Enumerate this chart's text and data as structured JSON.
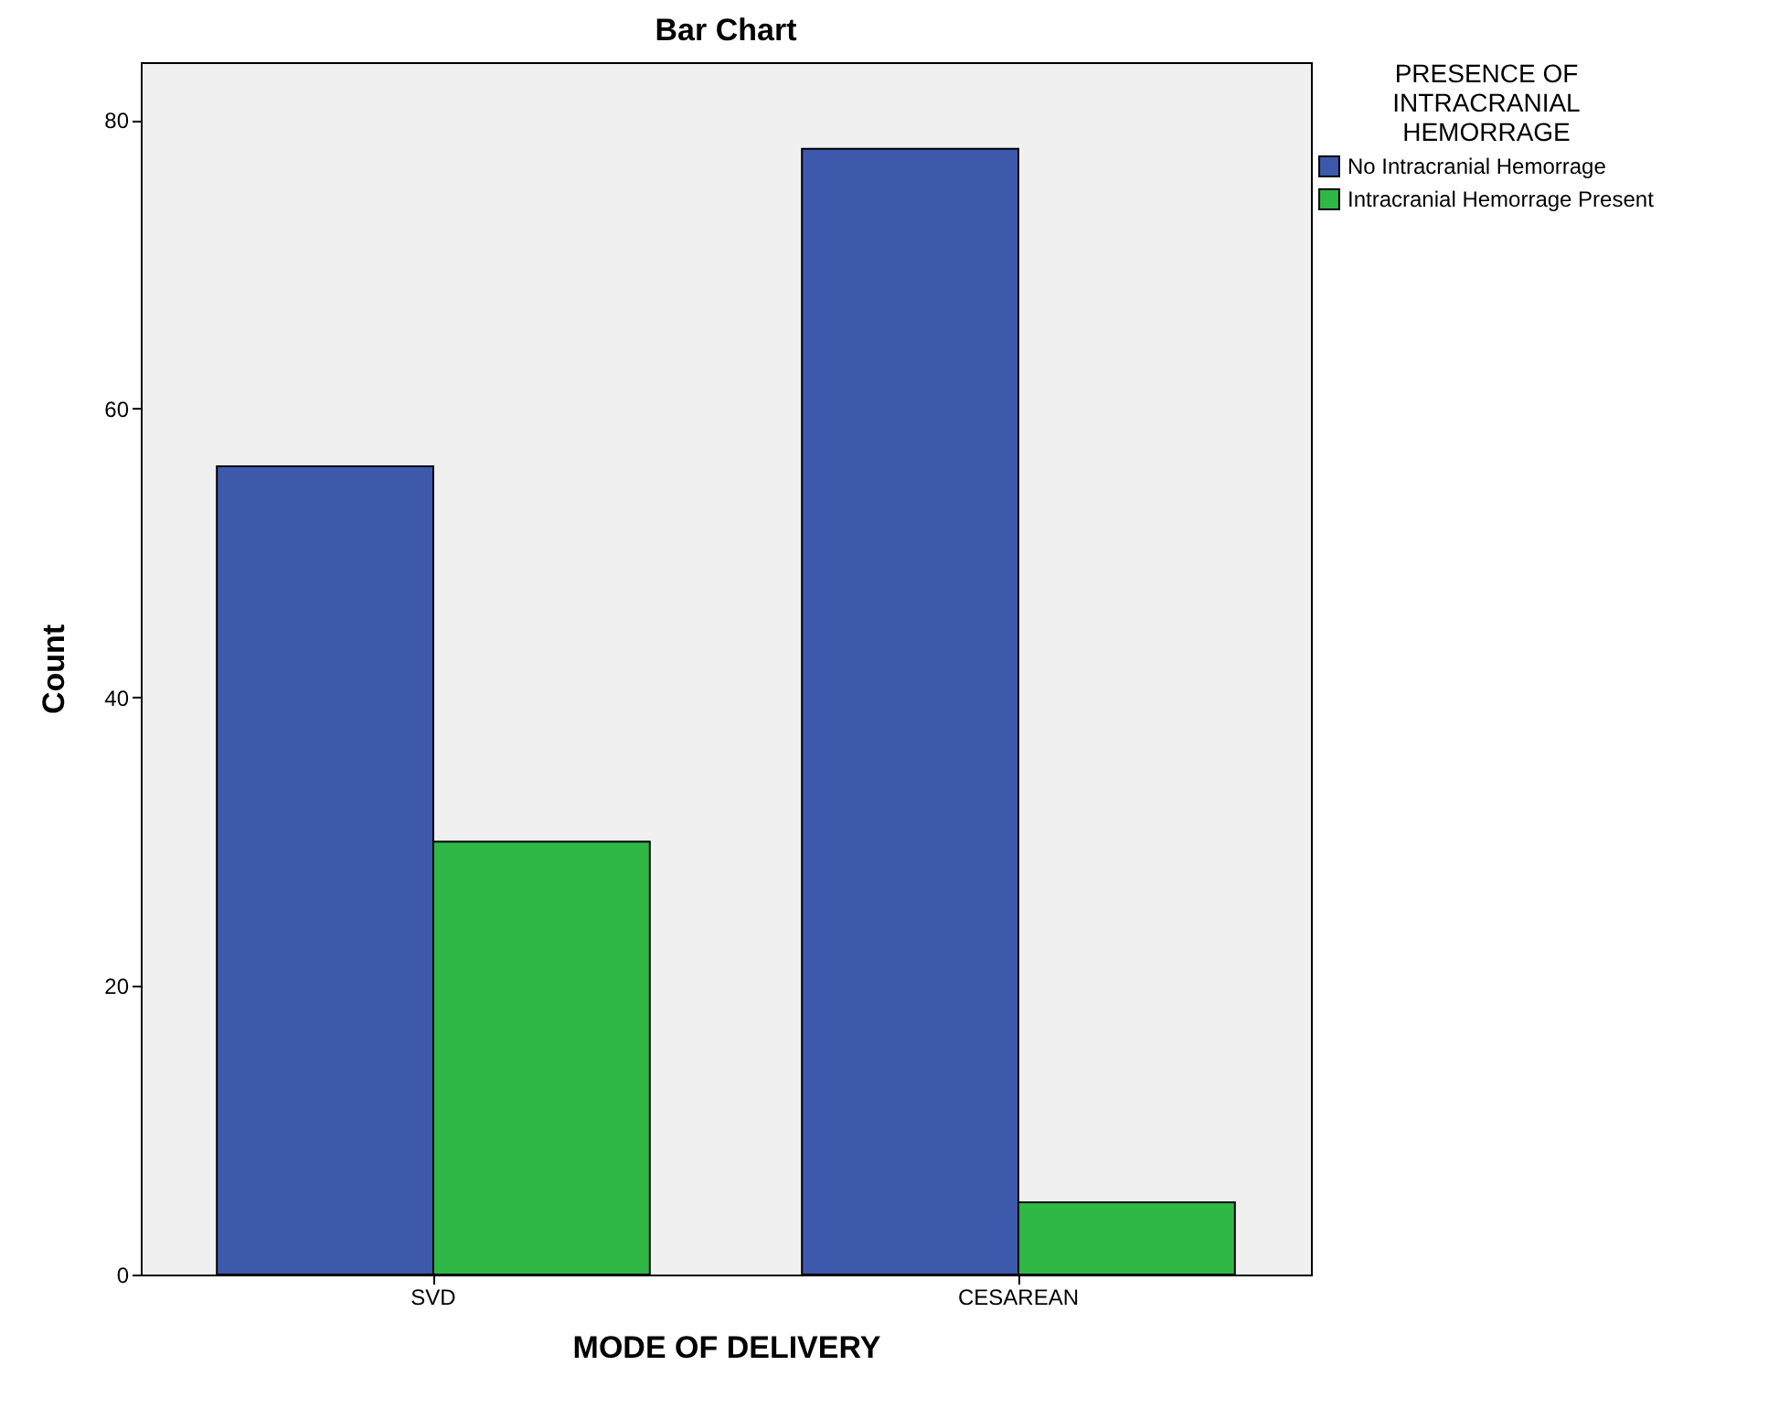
{
  "chart_data": {
    "type": "bar",
    "title": "Bar Chart",
    "xlabel": "MODE OF DELIVERY",
    "ylabel": "Count",
    "legend_title": "PRESENCE OF INTRACRANIAL HEMORRAGE",
    "categories": [
      "SVD",
      "CESAREAN"
    ],
    "series": [
      {
        "name": "No Intracranial Hemorrage",
        "color": "#3e58ac",
        "values": [
          56,
          78
        ]
      },
      {
        "name": "Intracranial Hemorrage Present",
        "color": "#2fb846",
        "values": [
          30,
          5
        ]
      }
    ],
    "ylim": [
      0,
      84
    ],
    "yticks": [
      0,
      20,
      40,
      60,
      80
    ],
    "grid": false,
    "legend": "top right"
  }
}
